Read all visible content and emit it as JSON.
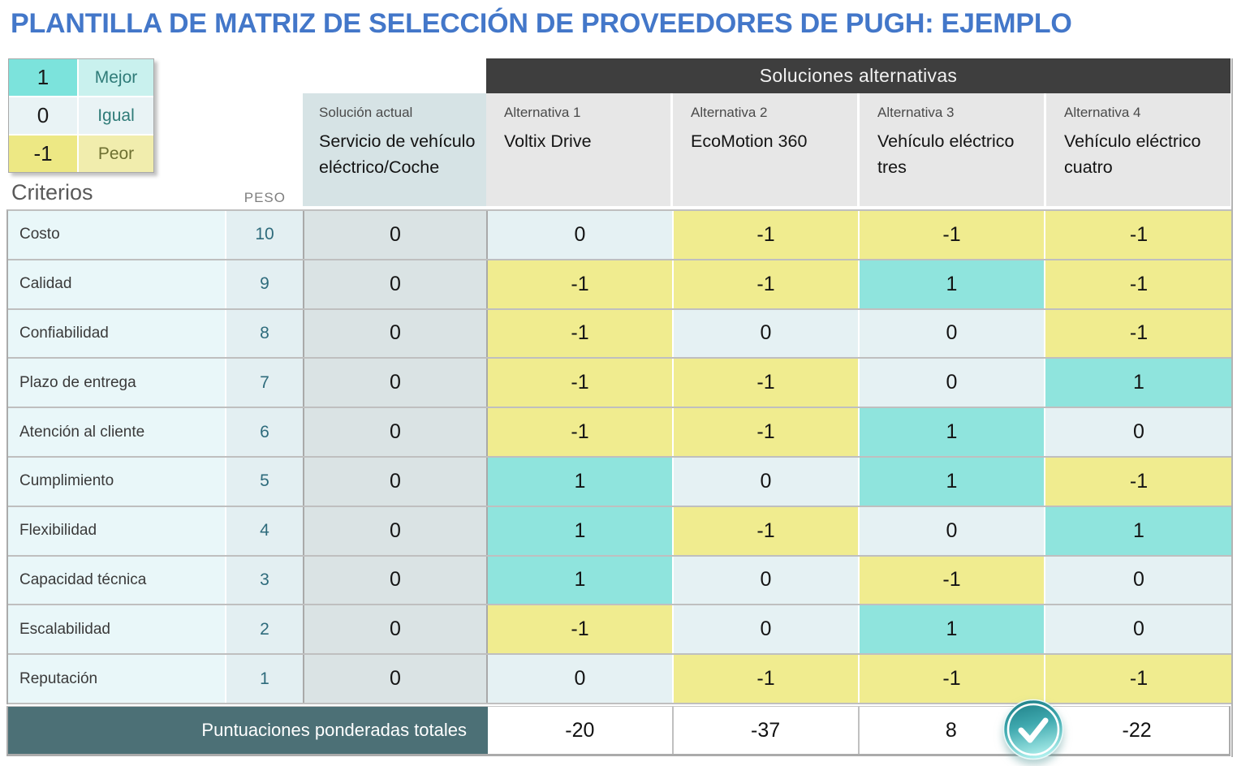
{
  "title": "PLANTILLA DE MATRIZ DE SELECCIÓN DE PROVEEDORES DE PUGH: EJEMPLO",
  "legend": {
    "items": [
      {
        "value": "1",
        "label": "Mejor"
      },
      {
        "value": "0",
        "label": "Igual"
      },
      {
        "value": "-1",
        "label": "Peor"
      }
    ]
  },
  "criteria_header": "Criterios",
  "weight_header": "PESO",
  "solutions_header": "Soluciones alternativas",
  "current_solution": {
    "label": "Solución actual",
    "name": "Servicio de vehículo eléctrico/Coche",
    "scores": [
      0,
      0,
      0,
      0,
      0,
      0,
      0,
      0,
      0,
      0
    ]
  },
  "alternatives": [
    {
      "label": "Alternativa 1",
      "name": "Voltix Drive",
      "scores": [
        0,
        -1,
        -1,
        -1,
        -1,
        1,
        1,
        1,
        -1,
        0
      ],
      "total": "-20"
    },
    {
      "label": "Alternativa 2",
      "name": "EcoMotion 360",
      "scores": [
        -1,
        -1,
        0,
        -1,
        -1,
        0,
        -1,
        0,
        0,
        -1
      ],
      "total": "-37"
    },
    {
      "label": "Alternativa 3",
      "name": "Vehículo eléctrico tres",
      "scores": [
        -1,
        1,
        0,
        0,
        1,
        1,
        0,
        -1,
        1,
        -1
      ],
      "total": "8"
    },
    {
      "label": "Alternativa 4",
      "name": "Vehículo eléctrico cuatro",
      "scores": [
        -1,
        -1,
        -1,
        1,
        0,
        -1,
        1,
        0,
        0,
        -1
      ],
      "total": "-22"
    }
  ],
  "criteria": [
    {
      "name": "Costo",
      "weight": "10"
    },
    {
      "name": "Calidad",
      "weight": "9"
    },
    {
      "name": "Confiabilidad",
      "weight": "8"
    },
    {
      "name": "Plazo de entrega",
      "weight": "7"
    },
    {
      "name": "Atención al cliente",
      "weight": "6"
    },
    {
      "name": "Cumplimiento",
      "weight": "5"
    },
    {
      "name": "Flexibilidad",
      "weight": "4"
    },
    {
      "name": "Capacidad técnica",
      "weight": "3"
    },
    {
      "name": "Escalabilidad",
      "weight": "2"
    },
    {
      "name": "Reputación",
      "weight": "1"
    }
  ],
  "totals_label": "Puntuaciones ponderadas totales",
  "icons": {
    "check": "check-icon"
  },
  "colors": {
    "title_accent": "#4377C9",
    "score_best": "#8FE4DD",
    "score_equal": "#E5F1F3",
    "score_worst": "#F0EC8F",
    "group_band": "#3E3E3E",
    "totals_band": "#4C7076",
    "check_teal": "#2E8F96"
  }
}
